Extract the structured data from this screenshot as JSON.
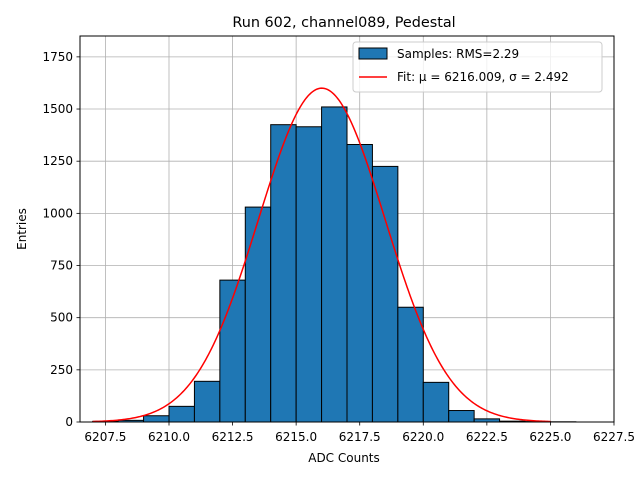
{
  "chart_data": {
    "type": "bar",
    "title": "Run 602, channel089, Pedestal",
    "xlabel": "ADC Counts",
    "ylabel": "Entries",
    "xlim": [
      6206.5,
      6227.5
    ],
    "ylim": [
      0,
      1850
    ],
    "x_ticks": [
      6207.5,
      6210.0,
      6212.5,
      6215.0,
      6217.5,
      6220.0,
      6222.5,
      6225.0,
      6227.5
    ],
    "x_tick_labels": [
      "6207.5",
      "6210.0",
      "6212.5",
      "6215.0",
      "6217.5",
      "6220.0",
      "6222.5",
      "6225.0",
      "6227.5"
    ],
    "y_ticks": [
      0,
      250,
      500,
      750,
      1000,
      1250,
      1500,
      1750
    ],
    "y_tick_labels": [
      "0",
      "250",
      "500",
      "750",
      "1000",
      "1250",
      "1500",
      "1750"
    ],
    "grid": true,
    "legend_position": "top-right",
    "bin_edges": [
      6207,
      6208,
      6209,
      6210,
      6211,
      6212,
      6213,
      6214,
      6215,
      6216,
      6217,
      6218,
      6219,
      6220,
      6221,
      6222,
      6223,
      6224,
      6225,
      6226,
      6227
    ],
    "series": [
      {
        "name": "Samples: RMS=2.29",
        "kind": "histogram",
        "color": "#1f77b4",
        "edgecolor": "#000000",
        "values": [
          3,
          8,
          30,
          75,
          195,
          680,
          1030,
          1425,
          1415,
          1510,
          1330,
          1225,
          550,
          190,
          55,
          15,
          4,
          2,
          1,
          0
        ]
      },
      {
        "name": "Fit: μ = 6216.009, σ = 2.492",
        "kind": "gaussian-fit",
        "color": "#ff0000",
        "mu": 6216.009,
        "sigma": 2.492,
        "amplitude": 1600,
        "x_range": [
          6207,
          6225
        ]
      }
    ]
  }
}
